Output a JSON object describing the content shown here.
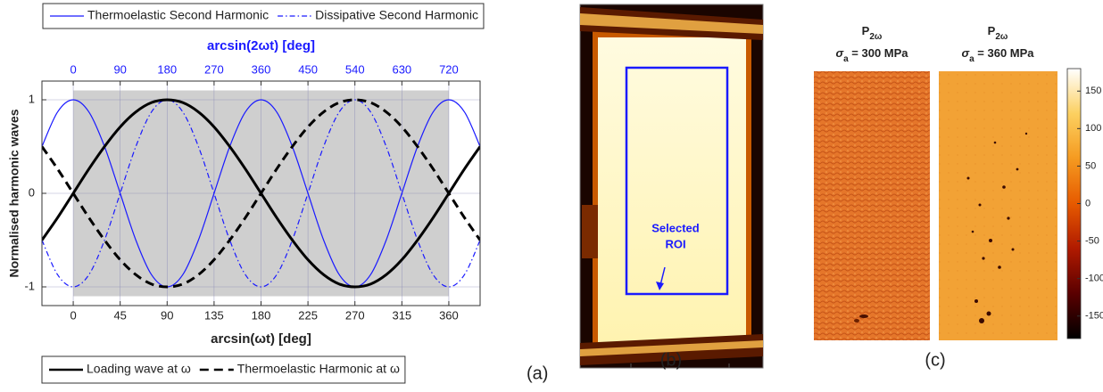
{
  "chart_data": [
    {
      "type": "line",
      "x": [
        -30,
        -15,
        0,
        15,
        30,
        45,
        60,
        75,
        90,
        105,
        120,
        135,
        150,
        165,
        180,
        195,
        210,
        225,
        240,
        255,
        270,
        285,
        300,
        315,
        330,
        345,
        360,
        375,
        390
      ],
      "xlim": [
        -30,
        390
      ],
      "xticks": [
        0,
        45,
        90,
        135,
        180,
        225,
        270,
        315,
        360
      ],
      "xlabel": "arcsin(ωt) [deg]",
      "x2lim": [
        -60,
        780
      ],
      "x2ticks": [
        0,
        90,
        180,
        270,
        360,
        450,
        540,
        630,
        720
      ],
      "x2label": "arcsin(2ωt) [deg]",
      "x2color": "#1a1aff",
      "ylim": [
        -1.2,
        1.2
      ],
      "yticks": [
        -1,
        0,
        1
      ],
      "ylabel": "Normalised harmonic waves",
      "grid": true,
      "shaded_xrange": [
        0,
        360
      ],
      "shaded_yrange": [
        -1.1,
        1.1
      ],
      "shade_color": "#cfcfcf",
      "series": [
        {
          "name": "Thermoelastic Second Harmonic",
          "color": "#1a1aff",
          "dash": "solid",
          "width": 1.2,
          "legend": "top",
          "values": [
            0.5,
            0.87,
            1,
            0.87,
            0.5,
            0,
            -0.5,
            -0.87,
            -1,
            -0.87,
            -0.5,
            0,
            0.5,
            0.87,
            1,
            0.87,
            0.5,
            0,
            -0.5,
            -0.87,
            -1,
            -0.87,
            -0.5,
            0,
            0.5,
            0.87,
            1,
            0.87,
            0.5
          ]
        },
        {
          "name": "Dissipative Second Harmonic",
          "color": "#1a1aff",
          "dash": "dashdot",
          "width": 1.2,
          "legend": "top",
          "values": [
            -0.5,
            -0.87,
            -1,
            -0.87,
            -0.5,
            0,
            0.5,
            0.87,
            1,
            0.87,
            0.5,
            0,
            -0.5,
            -0.87,
            -1,
            -0.87,
            -0.5,
            0,
            0.5,
            0.87,
            1,
            0.87,
            0.5,
            0,
            -0.5,
            -0.87,
            -1,
            -0.87,
            -0.5
          ]
        },
        {
          "name": "Loading wave at ω",
          "color": "#000000",
          "dash": "solid",
          "width": 3,
          "legend": "bottom",
          "values": [
            -0.5,
            -0.26,
            0,
            0.26,
            0.5,
            0.71,
            0.87,
            0.97,
            1,
            0.97,
            0.87,
            0.71,
            0.5,
            0.26,
            0,
            -0.26,
            -0.5,
            -0.71,
            -0.87,
            -0.97,
            -1,
            -0.97,
            -0.87,
            -0.71,
            -0.5,
            -0.26,
            0,
            0.26,
            0.5
          ]
        },
        {
          "name": "Thermoelastic Harmonic at ω",
          "color": "#000000",
          "dash": "dashed",
          "width": 3,
          "legend": "bottom",
          "values": [
            0.5,
            0.26,
            0,
            -0.26,
            -0.5,
            -0.71,
            -0.87,
            -0.97,
            -1,
            -0.97,
            -0.87,
            -0.71,
            -0.5,
            -0.26,
            0,
            0.26,
            0.5,
            0.71,
            0.87,
            0.97,
            1,
            0.97,
            0.87,
            0.71,
            0.5,
            0.26,
            0,
            -0.26,
            -0.5
          ]
        }
      ]
    },
    {
      "type": "colorbar",
      "lim": [
        -180,
        180
      ],
      "ticks": [
        150,
        100,
        50,
        0,
        -50,
        -100,
        -150
      ],
      "colors": [
        "#000000",
        "#5a0000",
        "#b01a00",
        "#e65a00",
        "#f59a20",
        "#fcd060",
        "#ffffff"
      ]
    }
  ],
  "panels": {
    "a": {
      "label": "(a)"
    },
    "b": {
      "label": "(b)",
      "annotation": [
        "Selected",
        "ROI"
      ]
    },
    "c": {
      "label": "(c)",
      "maps": [
        {
          "symbol": "P",
          "subscript": "2ω",
          "stress_symbol": "σ",
          "stress_subscript": "a",
          "stress_text": " = 300 MPa"
        },
        {
          "symbol": "P",
          "subscript": "2ω",
          "stress_symbol": "σ",
          "stress_subscript": "a",
          "stress_text": " = 360 MPa"
        }
      ]
    }
  }
}
